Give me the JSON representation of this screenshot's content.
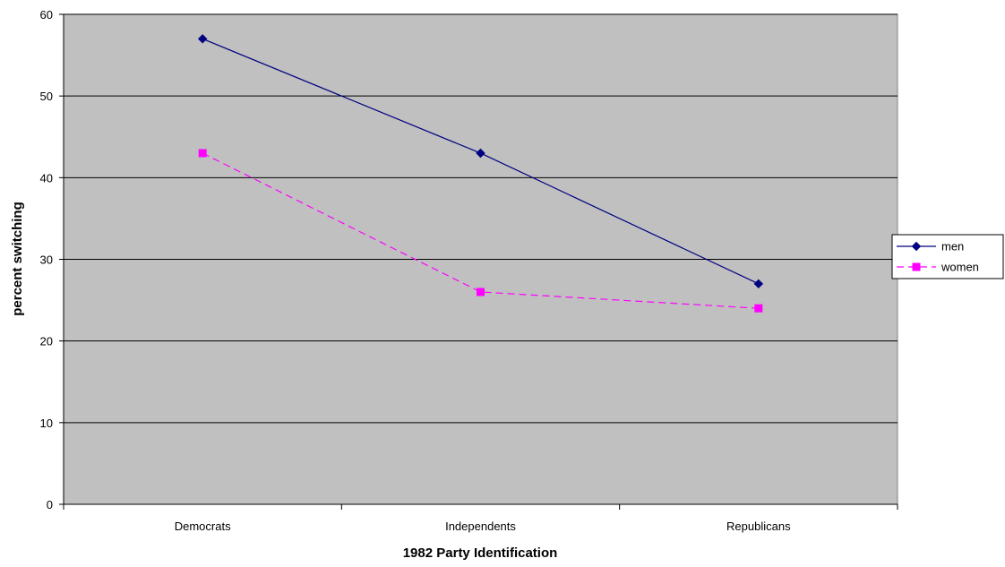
{
  "chart_data": {
    "type": "line",
    "title": "",
    "xlabel": "1982 Party Identification",
    "ylabel": "percent switching",
    "categories": [
      "Democrats",
      "Independents",
      "Republicans"
    ],
    "ylim": [
      0,
      60
    ],
    "yticks": [
      0,
      10,
      20,
      30,
      40,
      50,
      60
    ],
    "grid": true,
    "legend_position": "right",
    "plot_background": "#c0c0c0",
    "series": [
      {
        "name": "men",
        "values": [
          57,
          43,
          27
        ],
        "color": "#000080",
        "marker": "diamond",
        "dash": "solid"
      },
      {
        "name": "women",
        "values": [
          43,
          26,
          24
        ],
        "color": "#ff00ff",
        "marker": "square",
        "dash": "dashed"
      }
    ]
  }
}
